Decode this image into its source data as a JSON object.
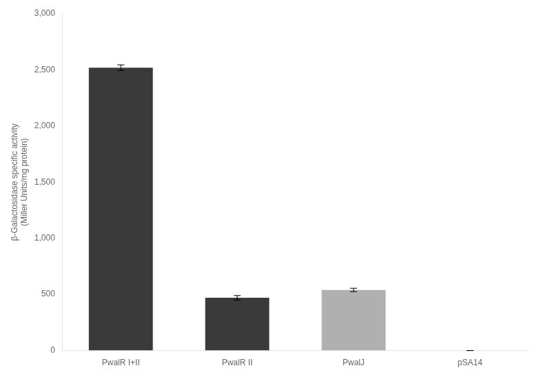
{
  "chart_data": {
    "type": "bar",
    "categories": [
      "PwalR I+II",
      "PwalR II",
      "PwalJ",
      "pSA14"
    ],
    "values": [
      2520,
      470,
      540,
      0
    ],
    "errors": [
      25,
      20,
      15,
      0
    ],
    "colors": [
      "#3a3a3a",
      "#3a3a3a",
      "#b0b0b0",
      "#b0b0b0"
    ],
    "y_label": "β-Galactosidase specific activity\n(Miller Units/mg protein)",
    "ylim": [
      0,
      3000
    ],
    "yticks": [
      0,
      500,
      1000,
      1500,
      2000,
      2500,
      3000
    ],
    "grid": false
  }
}
